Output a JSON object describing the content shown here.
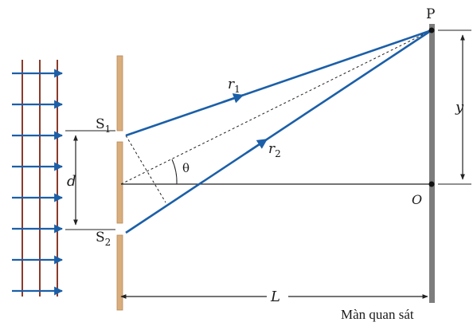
{
  "labels": {
    "point_p": "P",
    "slit_1_letter": "S",
    "slit_1_sub": "1",
    "slit_2_letter": "S",
    "slit_2_sub": "2",
    "ray_1_letter": "r",
    "ray_1_sub": "1",
    "ray_2_letter": "r",
    "ray_2_sub": "2",
    "angle": "θ",
    "slit_separation": "d",
    "height": "y",
    "distance": "L",
    "origin": "O",
    "screen_caption": "Màn quan sát"
  },
  "colors": {
    "ray": "#1b5fa8",
    "wavefront": "#8b3a2a",
    "slit_barrier": "#d9ad7c",
    "screen": "#7d7d7d",
    "line": "#222222"
  }
}
